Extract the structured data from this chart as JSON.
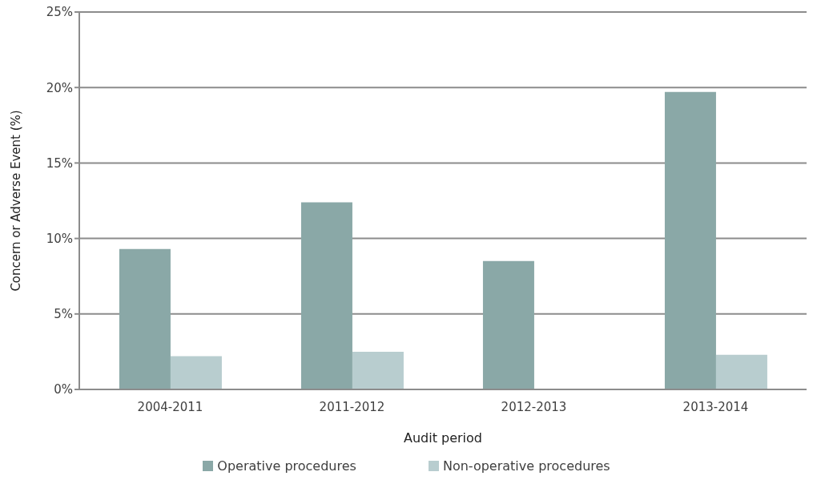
{
  "chart_data": {
    "type": "bar",
    "xlabel": "Audit period",
    "ylabel": "Concern or Adverse Event  (%)",
    "categories": [
      "2004-2011",
      "2011-2012",
      "2012-2013",
      "2013-2014"
    ],
    "series": [
      {
        "name": "Operative procedures",
        "color": "#8aa8a7",
        "values": [
          9.3,
          12.4,
          8.5,
          19.7
        ]
      },
      {
        "name": "Non-operative procedures",
        "color": "#b8cdcf",
        "values": [
          2.2,
          2.5,
          null,
          2.3
        ]
      }
    ],
    "ylim": [
      0,
      25
    ],
    "yticks": [
      {
        "value": 0,
        "label": "0%"
      },
      {
        "value": 5,
        "label": "5%"
      },
      {
        "value": 10,
        "label": "10%"
      },
      {
        "value": 15,
        "label": "15%"
      },
      {
        "value": 20,
        "label": "20%"
      },
      {
        "value": 25,
        "label": "25%"
      }
    ],
    "grid": "y",
    "legend": "bottom"
  }
}
